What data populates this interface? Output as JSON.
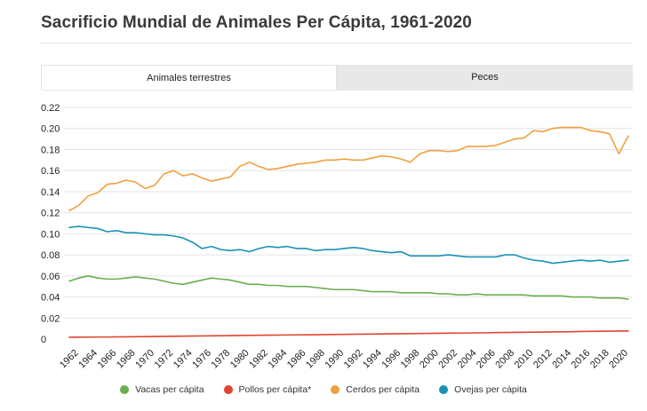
{
  "chart_data": {
    "type": "line",
    "title": "Sacrificio Mundial de Animales Per Cápita, 1961-2020",
    "tabs": [
      {
        "label": "Animales terrestres",
        "active": true
      },
      {
        "label": "Peces",
        "active": false
      }
    ],
    "xlabel": "",
    "ylabel": "",
    "xlim": [
      1961,
      2020
    ],
    "ylim": [
      0,
      0.22
    ],
    "yticks": [
      "0",
      "0.02",
      "0.04",
      "0.06",
      "0.08",
      "0.10",
      "0.12",
      "0.14",
      "0.16",
      "0.18",
      "0.20",
      "0.22"
    ],
    "xticks": [
      "1962",
      "1964",
      "1966",
      "1968",
      "1970",
      "1972",
      "1974",
      "1976",
      "1978",
      "1980",
      "1982",
      "1984",
      "1986",
      "1988",
      "1990",
      "1992",
      "1994",
      "1996",
      "1998",
      "2000",
      "2002",
      "2004",
      "2006",
      "2008",
      "2010",
      "2012",
      "2014",
      "2016",
      "2018",
      "2020"
    ],
    "x": [
      1961,
      1962,
      1963,
      1964,
      1965,
      1966,
      1967,
      1968,
      1969,
      1970,
      1971,
      1972,
      1973,
      1974,
      1975,
      1976,
      1977,
      1978,
      1979,
      1980,
      1981,
      1982,
      1983,
      1984,
      1985,
      1986,
      1987,
      1988,
      1989,
      1990,
      1991,
      1992,
      1993,
      1994,
      1995,
      1996,
      1997,
      1998,
      1999,
      2000,
      2001,
      2002,
      2003,
      2004,
      2005,
      2006,
      2007,
      2008,
      2009,
      2010,
      2011,
      2012,
      2013,
      2014,
      2015,
      2016,
      2017,
      2018,
      2019,
      2020
    ],
    "grid": true,
    "legend_position": "bottom",
    "series": [
      {
        "name": "Vacas per cápita",
        "color": "#6aaf4f",
        "values": [
          0.055,
          0.058,
          0.06,
          0.058,
          0.057,
          0.057,
          0.058,
          0.059,
          0.058,
          0.057,
          0.055,
          0.053,
          0.052,
          0.054,
          0.056,
          0.058,
          0.057,
          0.056,
          0.054,
          0.052,
          0.052,
          0.051,
          0.051,
          0.05,
          0.05,
          0.05,
          0.049,
          0.048,
          0.047,
          0.047,
          0.047,
          0.046,
          0.045,
          0.045,
          0.045,
          0.044,
          0.044,
          0.044,
          0.044,
          0.043,
          0.043,
          0.042,
          0.042,
          0.043,
          0.042,
          0.042,
          0.042,
          0.042,
          0.042,
          0.041,
          0.041,
          0.041,
          0.041,
          0.04,
          0.04,
          0.04,
          0.039,
          0.039,
          0.039,
          0.038
        ]
      },
      {
        "name": "Pollos per cápita*",
        "color": "#e0442f",
        "values": [
          0.0017,
          0.0018,
          0.0019,
          0.002,
          0.002,
          0.0021,
          0.0022,
          0.0023,
          0.0024,
          0.0025,
          0.0026,
          0.0027,
          0.0028,
          0.0029,
          0.003,
          0.0031,
          0.0032,
          0.0033,
          0.0034,
          0.0035,
          0.0036,
          0.0037,
          0.0038,
          0.0039,
          0.004,
          0.0041,
          0.0042,
          0.0043,
          0.0044,
          0.0045,
          0.0046,
          0.0047,
          0.0048,
          0.0049,
          0.005,
          0.0051,
          0.0052,
          0.0053,
          0.0054,
          0.0055,
          0.0056,
          0.0057,
          0.0058,
          0.0059,
          0.006,
          0.0062,
          0.0063,
          0.0064,
          0.0065,
          0.0066,
          0.0067,
          0.0068,
          0.0069,
          0.007,
          0.0072,
          0.0073,
          0.0074,
          0.0075,
          0.0076,
          0.0076
        ]
      },
      {
        "name": "Cerdos per cápita",
        "color": "#f0a040",
        "values": [
          0.122,
          0.127,
          0.136,
          0.139,
          0.147,
          0.148,
          0.151,
          0.149,
          0.143,
          0.146,
          0.157,
          0.16,
          0.155,
          0.157,
          0.153,
          0.15,
          0.152,
          0.154,
          0.164,
          0.168,
          0.164,
          0.161,
          0.162,
          0.164,
          0.166,
          0.167,
          0.168,
          0.17,
          0.17,
          0.171,
          0.17,
          0.17,
          0.172,
          0.174,
          0.173,
          0.171,
          0.168,
          0.176,
          0.179,
          0.179,
          0.178,
          0.179,
          0.183,
          0.183,
          0.183,
          0.184,
          0.187,
          0.19,
          0.191,
          0.198,
          0.197,
          0.2,
          0.201,
          0.201,
          0.201,
          0.198,
          0.197,
          0.195,
          0.176,
          0.193
        ]
      },
      {
        "name": "Ovejas per cápita",
        "color": "#1a92b5",
        "values": [
          0.106,
          0.107,
          0.106,
          0.105,
          0.102,
          0.103,
          0.101,
          0.101,
          0.1,
          0.099,
          0.099,
          0.098,
          0.096,
          0.092,
          0.086,
          0.088,
          0.085,
          0.084,
          0.085,
          0.083,
          0.086,
          0.088,
          0.087,
          0.088,
          0.086,
          0.086,
          0.084,
          0.085,
          0.085,
          0.086,
          0.087,
          0.086,
          0.084,
          0.083,
          0.082,
          0.083,
          0.079,
          0.079,
          0.079,
          0.079,
          0.08,
          0.079,
          0.078,
          0.078,
          0.078,
          0.078,
          0.08,
          0.08,
          0.077,
          0.075,
          0.074,
          0.072,
          0.073,
          0.074,
          0.075,
          0.074,
          0.075,
          0.073,
          0.074,
          0.075
        ]
      }
    ]
  }
}
